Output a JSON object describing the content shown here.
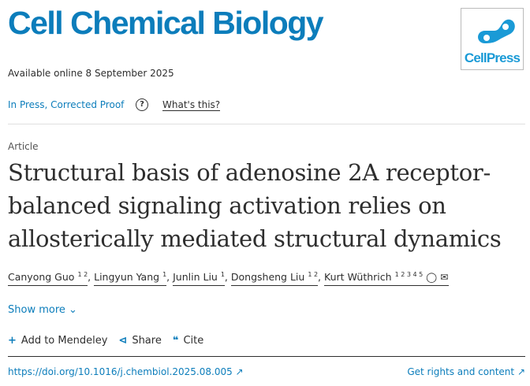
{
  "journal": "Cell Chemical Biology",
  "available": "Available online 8 September 2025",
  "logo_text": "CellPress",
  "status": "In Press, Corrected Proof",
  "whats_this": "What's this?",
  "article_type": "Article",
  "title": "Structural basis of adenosine 2A receptor-balanced signaling activation relies on allosterically mediated structural dynamics",
  "authors": [
    {
      "name": "Canyong Guo",
      "sup": "1 2"
    },
    {
      "name": "Lingyun Yang",
      "sup": "1"
    },
    {
      "name": "Junlin Liu",
      "sup": "1"
    },
    {
      "name": "Dongsheng Liu",
      "sup": "1 2"
    },
    {
      "name": "Kurt Wüthrich",
      "sup": "1 2 3 4 5"
    }
  ],
  "show_more": "Show more",
  "actions": {
    "mendeley": "Add to Mendeley",
    "share": "Share",
    "cite": "Cite"
  },
  "doi": "https://doi.org/10.1016/j.chembiol.2025.08.005",
  "rights": "Get rights and content",
  "colors": {
    "brand": "#0c7dbb",
    "logo": "#1a9ad6"
  }
}
